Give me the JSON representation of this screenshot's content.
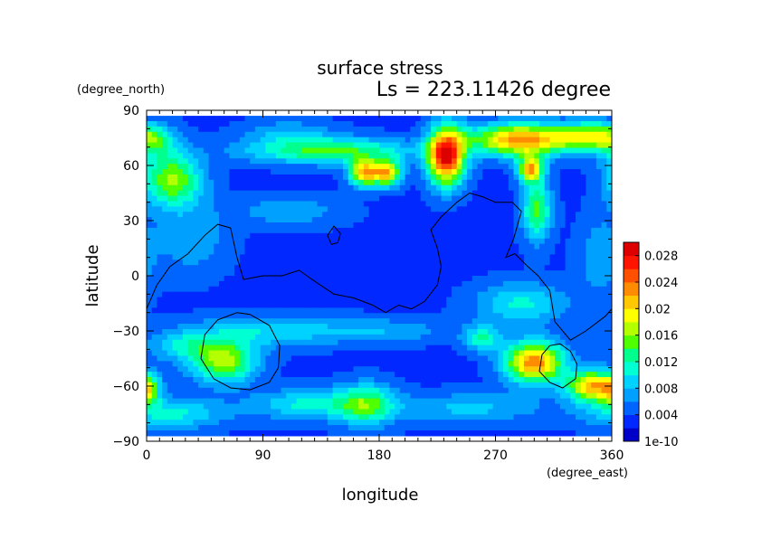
{
  "title": "surface stress",
  "subtitle": "Ls = 223.11426 degree",
  "chart_data": {
    "type": "heatmap",
    "title": "surface stress",
    "subtitle": "Ls = 223.11426 degree",
    "xlabel": "longitude",
    "ylabel": "latitude",
    "x_unit_label": "(degree_east)",
    "y_unit_label": "(degree_north)",
    "xlim": [
      0,
      360
    ],
    "ylim": [
      -90,
      90
    ],
    "x_ticks": [
      0,
      90,
      180,
      270,
      360
    ],
    "y_ticks": [
      90,
      60,
      30,
      0,
      -30,
      -60,
      -90
    ],
    "x_tick_labels": [
      "0",
      "90",
      "180",
      "270",
      "360"
    ],
    "y_tick_labels": [
      "90",
      "60",
      "30",
      "0",
      "−30",
      "−60",
      "−90"
    ],
    "data_lat_range": [
      -87,
      87
    ],
    "colorbar": {
      "min": 0,
      "max": 0.03,
      "tick_values": [
        1e-10,
        0.004,
        0.008,
        0.012,
        0.016,
        0.02,
        0.024,
        0.028
      ],
      "tick_labels": [
        "1e-10",
        "0.004",
        "0.008",
        "0.012",
        "0.016",
        "0.02",
        "0.024",
        "0.028"
      ],
      "colors": [
        "#0000c8",
        "#0028ff",
        "#0064ff",
        "#00a0ff",
        "#00d2ff",
        "#00ffd2",
        "#00ff8c",
        "#50ff00",
        "#b4ff00",
        "#ffff00",
        "#ffc800",
        "#ff8c00",
        "#ff5000",
        "#ff1400",
        "#dc0000"
      ]
    },
    "base_value": 0.0035,
    "features": [
      {
        "lon": 20,
        "lat": 52,
        "slon": 16,
        "slat": 10,
        "amp": 0.013
      },
      {
        "lon": 5,
        "lat": 72,
        "slon": 14,
        "slat": 7,
        "amp": 0.006
      },
      {
        "lon": 140,
        "lat": 68,
        "slon": 45,
        "slat": 5,
        "amp": 0.011
      },
      {
        "lon": 110,
        "lat": 78,
        "slon": 25,
        "slat": 5,
        "amp": 0.004
      },
      {
        "lon": 168,
        "lat": 56,
        "slon": 8,
        "slat": 5,
        "amp": 0.017
      },
      {
        "lon": 186,
        "lat": 56,
        "slon": 8,
        "slat": 5,
        "amp": 0.017
      },
      {
        "lon": 232,
        "lat": 65,
        "slon": 10,
        "slat": 11,
        "amp": 0.025
      },
      {
        "lon": 290,
        "lat": 74,
        "slon": 28,
        "slat": 6,
        "amp": 0.02
      },
      {
        "lon": 345,
        "lat": 76,
        "slon": 18,
        "slat": 5,
        "amp": 0.012
      },
      {
        "lon": 297,
        "lat": 58,
        "slon": 7,
        "slat": 5,
        "amp": 0.017
      },
      {
        "lon": 302,
        "lat": 36,
        "slon": 8,
        "slat": 12,
        "amp": 0.011
      },
      {
        "lon": 110,
        "lat": 35,
        "slon": 30,
        "slat": 6,
        "amp": 0.004
      },
      {
        "lon": 35,
        "lat": 20,
        "slon": 20,
        "slat": 14,
        "amp": 0.004
      },
      {
        "lon": 350,
        "lat": 10,
        "slon": 12,
        "slat": 15,
        "amp": 0.004
      },
      {
        "lon": 290,
        "lat": -15,
        "slon": 25,
        "slat": 8,
        "amp": 0.007
      },
      {
        "lon": 60,
        "lat": -47,
        "slon": 18,
        "slat": 8,
        "amp": 0.013
      },
      {
        "lon": 30,
        "lat": -38,
        "slon": 22,
        "slat": 6,
        "amp": 0.006
      },
      {
        "lon": 95,
        "lat": -30,
        "slon": 40,
        "slat": 6,
        "amp": 0.006
      },
      {
        "lon": 185,
        "lat": -30,
        "slon": 35,
        "slat": 5,
        "amp": 0.004
      },
      {
        "lon": 0,
        "lat": -63,
        "slon": 6,
        "slat": 6,
        "amp": 0.009
      },
      {
        "lon": 20,
        "lat": -75,
        "slon": 30,
        "slat": 6,
        "amp": 0.007
      },
      {
        "lon": 125,
        "lat": -70,
        "slon": 30,
        "slat": 6,
        "amp": 0.007
      },
      {
        "lon": 170,
        "lat": -70,
        "slon": 16,
        "slat": 8,
        "amp": 0.01
      },
      {
        "lon": 260,
        "lat": -34,
        "slon": 10,
        "slat": 5,
        "amp": 0.008
      },
      {
        "lon": 300,
        "lat": -47,
        "slon": 16,
        "slat": 8,
        "amp": 0.02
      },
      {
        "lon": 345,
        "lat": -60,
        "slon": 14,
        "slat": 6,
        "amp": 0.018
      },
      {
        "lon": 250,
        "lat": -72,
        "slon": 40,
        "slat": 6,
        "amp": 0.005
      }
    ],
    "contours": [
      [
        [
          0,
          -18
        ],
        [
          8,
          -5
        ],
        [
          18,
          5
        ],
        [
          32,
          12
        ],
        [
          45,
          22
        ],
        [
          55,
          28
        ],
        [
          65,
          26
        ],
        [
          70,
          10
        ],
        [
          75,
          -2
        ],
        [
          90,
          0
        ],
        [
          105,
          0
        ],
        [
          118,
          3
        ],
        [
          128,
          -2
        ],
        [
          145,
          -10
        ],
        [
          160,
          -12
        ],
        [
          175,
          -16
        ],
        [
          185,
          -20
        ],
        [
          195,
          -16
        ],
        [
          205,
          -18
        ],
        [
          215,
          -14
        ],
        [
          225,
          -5
        ],
        [
          228,
          5
        ],
        [
          225,
          15
        ],
        [
          220,
          25
        ],
        [
          228,
          32
        ],
        [
          240,
          40
        ],
        [
          250,
          45
        ],
        [
          260,
          43
        ],
        [
          270,
          40
        ],
        [
          283,
          40
        ],
        [
          290,
          35
        ],
        [
          284,
          20
        ],
        [
          278,
          10
        ],
        [
          285,
          12
        ],
        [
          295,
          5
        ],
        [
          303,
          0
        ],
        [
          312,
          -8
        ],
        [
          316,
          -25
        ],
        [
          328,
          -35
        ],
        [
          340,
          -30
        ],
        [
          355,
          -22
        ],
        [
          360,
          -18
        ]
      ],
      [
        [
          140,
          22
        ],
        [
          145,
          27
        ],
        [
          150,
          23
        ],
        [
          148,
          18
        ],
        [
          143,
          17
        ],
        [
          140,
          22
        ]
      ],
      [
        [
          70,
          -20
        ],
        [
          80,
          -21
        ],
        [
          95,
          -27
        ],
        [
          103,
          -38
        ],
        [
          102,
          -50
        ],
        [
          95,
          -58
        ],
        [
          80,
          -62
        ],
        [
          65,
          -61
        ],
        [
          52,
          -56
        ],
        [
          42,
          -45
        ],
        [
          45,
          -32
        ],
        [
          55,
          -24
        ],
        [
          70,
          -20
        ]
      ],
      [
        [
          320,
          -37
        ],
        [
          328,
          -41
        ],
        [
          333,
          -48
        ],
        [
          332,
          -56
        ],
        [
          322,
          -61
        ],
        [
          312,
          -58
        ],
        [
          304,
          -52
        ],
        [
          306,
          -43
        ],
        [
          312,
          -38
        ],
        [
          320,
          -37
        ]
      ]
    ]
  }
}
